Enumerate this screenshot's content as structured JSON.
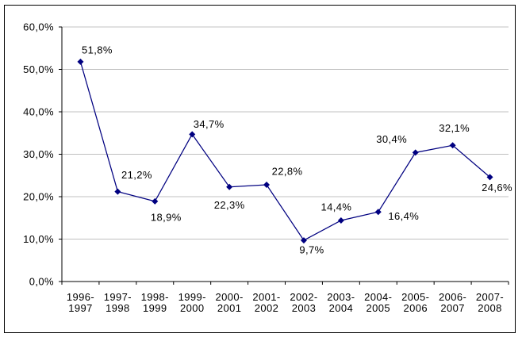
{
  "chart_data": {
    "type": "line",
    "title": "",
    "xlabel": "",
    "ylabel": "",
    "categories": [
      "1996-1997",
      "1997-1998",
      "1998-1999",
      "1999-2000",
      "2000-2001",
      "2001-2002",
      "2002-2003",
      "2003-2004",
      "2004-2005",
      "2005-2006",
      "2006-2007",
      "2007-2008"
    ],
    "category_labels_line1": [
      "1996-",
      "1997-",
      "1998-",
      "1999-",
      "2000-",
      "2001-",
      "2002-",
      "2003-",
      "2004-",
      "2005-",
      "2006-",
      "2007-"
    ],
    "category_labels_line2": [
      "1997",
      "1998",
      "1999",
      "2000",
      "2001",
      "2002",
      "2003",
      "2004",
      "2005",
      "2006",
      "2007",
      "2008"
    ],
    "series": [
      {
        "name": "percentage",
        "values": [
          51.8,
          21.2,
          18.9,
          34.7,
          22.3,
          22.8,
          9.7,
          14.4,
          16.4,
          30.4,
          32.1,
          24.6
        ],
        "point_labels": [
          "51,8%",
          "21,2%",
          "18,9%",
          "34,7%",
          "22,3%",
          "22,8%",
          "9,7%",
          "14,4%",
          "16,4%",
          "30,4%",
          "32,1%",
          "24,6%"
        ],
        "label_offsets": [
          [
            21,
            -15
          ],
          [
            24,
            -21
          ],
          [
            14,
            20
          ],
          [
            21,
            -13
          ],
          [
            0,
            23
          ],
          [
            26,
            -17
          ],
          [
            10,
            12
          ],
          [
            -6,
            -17
          ],
          [
            32,
            5
          ],
          [
            -30,
            -17
          ],
          [
            2,
            -22
          ],
          [
            9,
            13
          ]
        ]
      }
    ],
    "y_ticks": [
      0,
      10,
      20,
      30,
      40,
      50,
      60
    ],
    "y_tick_labels": [
      "0,0%",
      "10,0%",
      "20,0%",
      "30,0%",
      "40,0%",
      "50,0%",
      "60,0%"
    ],
    "ylim": [
      0,
      60
    ],
    "grid": true,
    "legend": "none",
    "marker": "diamond",
    "colors": {
      "line": "#000080",
      "marker": "#000080",
      "gridline": "#C0C0C0",
      "axis": "#000000",
      "text": "#000000",
      "background": "#FFFFFF",
      "frame_border": "#000000"
    }
  }
}
